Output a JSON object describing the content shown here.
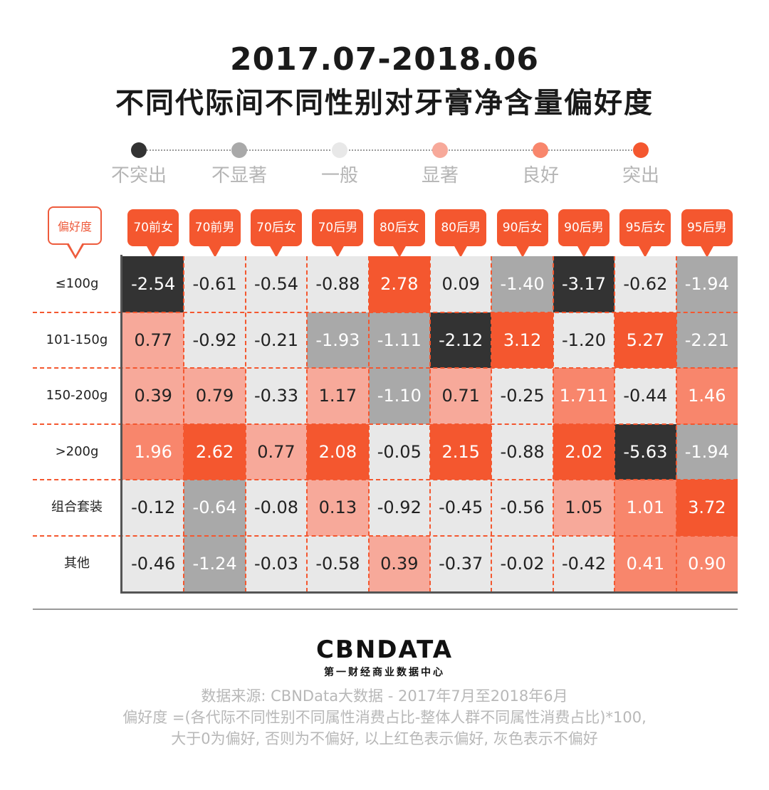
{
  "title_line1": "2017.07-2018.06",
  "title_line2": "不同代际间不同性别对牙膏净含量偏好度",
  "legend": [
    {
      "label": "不突出",
      "color": "#333333"
    },
    {
      "label": "不显著",
      "color": "#a9a9a9"
    },
    {
      "label": "一般",
      "color": "#e8e8e8"
    },
    {
      "label": "显著",
      "color": "#f7a99a"
    },
    {
      "label": "良好",
      "color": "#f8866c"
    },
    {
      "label": "突出",
      "color": "#f4572f"
    }
  ],
  "corner_label": "偏好度",
  "chart_data": {
    "type": "heatmap",
    "title": "不同代际间不同性别对牙膏净含量偏好度",
    "subtitle": "2017.07-2018.06",
    "columns": [
      "70前女",
      "70前男",
      "70后女",
      "70后男",
      "80后女",
      "80后男",
      "90后女",
      "90后男",
      "95后女",
      "95后男"
    ],
    "rows": [
      "≤100g",
      "101-150g",
      "150-200g",
      ">200g",
      "组合套装",
      "其他"
    ],
    "values": [
      [
        "-2.54",
        "-0.61",
        "-0.54",
        "-0.88",
        "2.78",
        "0.09",
        "-1.40",
        "-3.17",
        "-0.62",
        "-1.94"
      ],
      [
        "0.77",
        "-0.92",
        "-0.21",
        "-1.93",
        "-1.11",
        "-2.12",
        "3.12",
        "-1.20",
        "5.27",
        "-2.21"
      ],
      [
        "0.39",
        "0.79",
        "-0.33",
        "1.17",
        "-1.10",
        "0.71",
        "-0.25",
        "1.711",
        "-0.44",
        "1.46"
      ],
      [
        "1.96",
        "2.62",
        "0.77",
        "2.08",
        "-0.05",
        "2.15",
        "-0.88",
        "2.02",
        "-5.63",
        "-1.94"
      ],
      [
        "-0.12",
        "-0.64",
        "-0.08",
        "0.13",
        "-0.92",
        "-0.45",
        "-0.56",
        "1.05",
        "1.01",
        "3.72"
      ],
      [
        "-0.46",
        "-1.24",
        "-0.03",
        "-0.58",
        "0.39",
        "-0.37",
        "-0.02",
        "-0.42",
        "0.41",
        "0.90"
      ]
    ],
    "levels": [
      [
        0,
        2,
        2,
        2,
        5,
        2,
        1,
        0,
        2,
        1
      ],
      [
        3,
        2,
        2,
        1,
        1,
        0,
        5,
        2,
        5,
        1
      ],
      [
        3,
        3,
        2,
        3,
        1,
        3,
        2,
        4,
        2,
        4
      ],
      [
        4,
        5,
        3,
        5,
        2,
        5,
        2,
        5,
        0,
        1
      ],
      [
        2,
        1,
        2,
        3,
        2,
        2,
        2,
        3,
        4,
        5
      ],
      [
        2,
        1,
        2,
        2,
        3,
        2,
        2,
        2,
        4,
        4
      ]
    ],
    "level_colors": [
      "#333333",
      "#a9a9a9",
      "#e8e8e8",
      "#f7a99a",
      "#f8866c",
      "#f4572f"
    ],
    "level_text_colors": [
      "#ffffff",
      "#ffffff",
      "#222222",
      "#222222",
      "#ffffff",
      "#ffffff"
    ],
    "legend_position": "top"
  },
  "logo": {
    "text": "CBNDATA",
    "subtitle": "第一财经商业数据中心"
  },
  "notes": [
    "数据来源: CBNData大数据 - 2017年7月至2018年6月",
    "偏好度 =(各代际不同性别不同属性消费占比-整体人群不同属性消费占比)*100,",
    "大于0为偏好, 否则为不偏好, 以上红色表示偏好, 灰色表示不偏好"
  ]
}
